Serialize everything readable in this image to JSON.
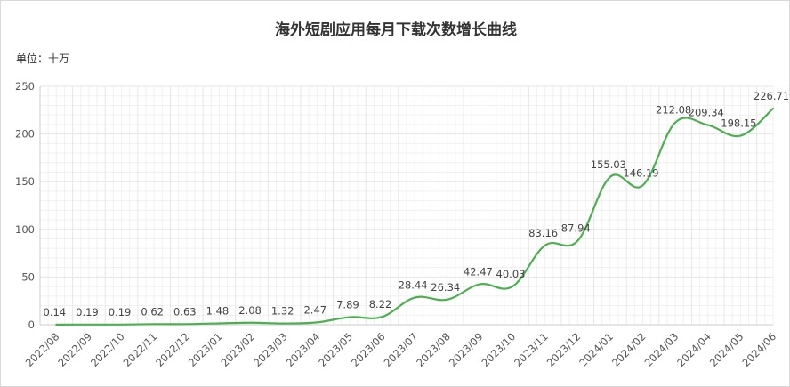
{
  "chart_data": {
    "type": "line",
    "title": "海外短剧应用每月下载次数增长曲线",
    "unit_label": "单位：十万",
    "xlabel": "",
    "ylabel": "",
    "ylim": [
      0,
      250
    ],
    "yticks": [
      0,
      50,
      100,
      150,
      200,
      250
    ],
    "grid": true,
    "legend": "none",
    "line_color": "#4caf50",
    "categories": [
      "2022/08",
      "2022/09",
      "2022/10",
      "2022/11",
      "2022/12",
      "2023/01",
      "2023/02",
      "2023/03",
      "2023/04",
      "2023/05",
      "2023/06",
      "2023/07",
      "2023/08",
      "2023/09",
      "2023/10",
      "2023/11",
      "2023/12",
      "2024/01",
      "2024/02",
      "2024/03",
      "2024/04",
      "2024/05",
      "2024/06"
    ],
    "series": [
      {
        "values": [
          0.14,
          0.19,
          0.19,
          0.62,
          0.63,
          1.48,
          2.08,
          1.32,
          2.47,
          7.89,
          8.22,
          28.44,
          26.34,
          42.47,
          40.03,
          83.16,
          87.94,
          155.03,
          146.19,
          212.08,
          209.34,
          198.15,
          226.71
        ]
      }
    ]
  }
}
